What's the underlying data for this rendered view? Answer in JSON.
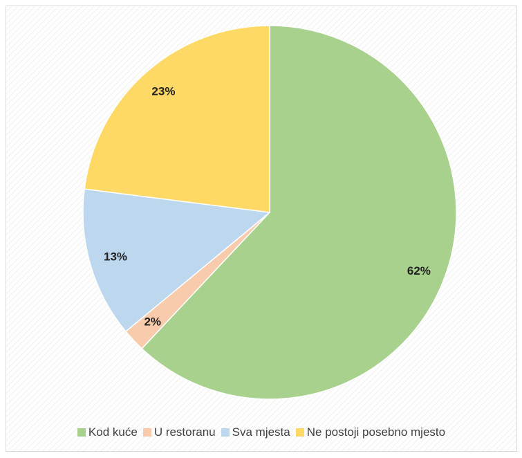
{
  "chart_data": {
    "type": "pie",
    "categories": [
      "Kod kuće",
      "U restoranu",
      "Sva mjesta",
      "Ne postoji posebno mjesto"
    ],
    "values": [
      62,
      2,
      13,
      23
    ],
    "value_labels": [
      "62%",
      "2%",
      "13%",
      "23%"
    ],
    "colors": [
      "#a9d18e",
      "#f8cbad",
      "#bdd7ee",
      "#ffd966"
    ],
    "legend": "bottom"
  }
}
